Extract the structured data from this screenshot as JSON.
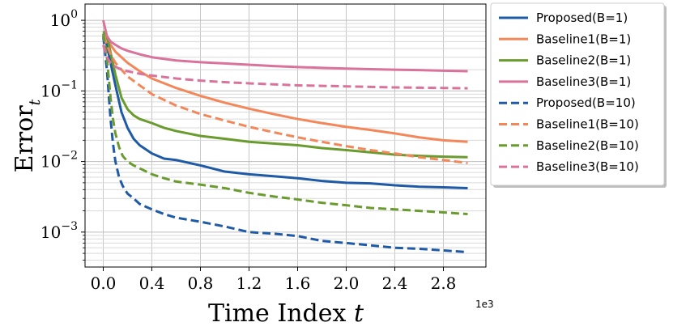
{
  "chart_data": {
    "type": "line",
    "xlabel_main": "Time Index ",
    "xlabel_var": "t",
    "ylabel_main": "Error",
    "ylabel_sub": "t",
    "x_offset_label": "1e3",
    "x_ticks": [
      "0.0",
      "0.4",
      "0.8",
      "1.2",
      "1.6",
      "2.0",
      "2.4",
      "2.8"
    ],
    "x_tick_values": [
      0,
      400,
      800,
      1200,
      1600,
      2000,
      2400,
      2800
    ],
    "y_ticks": [
      {
        "base": "10",
        "exp": "0",
        "value": 1
      },
      {
        "base": "10",
        "exp": "−1",
        "value": 0.1
      },
      {
        "base": "10",
        "exp": "−2",
        "value": 0.01
      },
      {
        "base": "10",
        "exp": "−3",
        "value": 0.001
      }
    ],
    "yscale": "log",
    "xlim": [
      -150,
      3150
    ],
    "ylim": [
      0.00032,
      1.7
    ],
    "grid": true,
    "legend_position": "outside-right",
    "series": [
      {
        "name": "Proposed(B=1)",
        "color": "#1f5aa6",
        "dash": "solid",
        "x": [
          0,
          30,
          60,
          100,
          150,
          200,
          250,
          300,
          400,
          500,
          600,
          800,
          1000,
          1200,
          1400,
          1600,
          1800,
          2000,
          2200,
          2400,
          2600,
          2800,
          3000
        ],
        "y": [
          0.55,
          0.45,
          0.25,
          0.12,
          0.05,
          0.03,
          0.021,
          0.017,
          0.013,
          0.011,
          0.0105,
          0.0088,
          0.0072,
          0.0066,
          0.0062,
          0.0058,
          0.0053,
          0.005,
          0.0049,
          0.0046,
          0.0044,
          0.0043,
          0.0042
        ]
      },
      {
        "name": "Baseline1(B=1)",
        "color": "#f4875a",
        "dash": "solid",
        "x": [
          0,
          30,
          60,
          100,
          150,
          200,
          300,
          400,
          600,
          800,
          1000,
          1200,
          1400,
          1600,
          1800,
          2000,
          2200,
          2400,
          2600,
          2800,
          3000
        ],
        "y": [
          0.6,
          0.55,
          0.45,
          0.36,
          0.3,
          0.25,
          0.19,
          0.15,
          0.11,
          0.085,
          0.068,
          0.056,
          0.047,
          0.04,
          0.035,
          0.031,
          0.028,
          0.025,
          0.022,
          0.02,
          0.019
        ]
      },
      {
        "name": "Baseline2(B=1)",
        "color": "#6a9b2e",
        "dash": "solid",
        "x": [
          0,
          30,
          60,
          100,
          150,
          200,
          250,
          300,
          400,
          500,
          600,
          800,
          1000,
          1200,
          1400,
          1600,
          1800,
          2000,
          2200,
          2400,
          2600,
          2800,
          3000
        ],
        "y": [
          0.7,
          0.6,
          0.35,
          0.17,
          0.08,
          0.055,
          0.045,
          0.04,
          0.035,
          0.03,
          0.027,
          0.023,
          0.021,
          0.019,
          0.018,
          0.017,
          0.0155,
          0.0145,
          0.0135,
          0.0125,
          0.012,
          0.0117,
          0.0115
        ]
      },
      {
        "name": "Baseline3(B=1)",
        "color": "#d9739b",
        "dash": "solid",
        "x": [
          0,
          30,
          60,
          100,
          150,
          200,
          300,
          400,
          600,
          800,
          1000,
          1200,
          1400,
          1600,
          1800,
          2000,
          2200,
          2400,
          2600,
          2800,
          3000
        ],
        "y": [
          1.0,
          0.6,
          0.5,
          0.45,
          0.4,
          0.37,
          0.33,
          0.3,
          0.27,
          0.255,
          0.245,
          0.235,
          0.225,
          0.218,
          0.212,
          0.207,
          0.203,
          0.2,
          0.197,
          0.193,
          0.19
        ]
      },
      {
        "name": "Proposed(B=10)",
        "color": "#1f5aa6",
        "dash": "dashed",
        "x": [
          0,
          30,
          60,
          80,
          100,
          130,
          160,
          200,
          250,
          300,
          400,
          500,
          600,
          800,
          1000,
          1200,
          1400,
          1600,
          1800,
          2000,
          2200,
          2400,
          2600,
          2800,
          3000
        ],
        "y": [
          0.6,
          0.2,
          0.04,
          0.018,
          0.01,
          0.006,
          0.0045,
          0.0035,
          0.003,
          0.0025,
          0.0021,
          0.0018,
          0.0016,
          0.0014,
          0.0012,
          0.001,
          0.00095,
          0.00088,
          0.00075,
          0.0007,
          0.00065,
          0.0006,
          0.00058,
          0.00055,
          0.00052
        ]
      },
      {
        "name": "Baseline1(B=10)",
        "color": "#f4875a",
        "dash": "dashed",
        "x": [
          0,
          30,
          60,
          100,
          150,
          200,
          300,
          400,
          600,
          800,
          1000,
          1200,
          1400,
          1600,
          1800,
          2000,
          2200,
          2400,
          2600,
          2800,
          3000
        ],
        "y": [
          0.6,
          0.45,
          0.33,
          0.25,
          0.2,
          0.16,
          0.12,
          0.09,
          0.062,
          0.047,
          0.038,
          0.031,
          0.026,
          0.022,
          0.019,
          0.0165,
          0.0145,
          0.013,
          0.0115,
          0.0105,
          0.0095
        ]
      },
      {
        "name": "Baseline2(B=10)",
        "color": "#6a9b2e",
        "dash": "dashed",
        "x": [
          0,
          30,
          60,
          80,
          100,
          130,
          160,
          200,
          250,
          300,
          400,
          500,
          600,
          800,
          1000,
          1200,
          1400,
          1600,
          1800,
          2000,
          2200,
          2400,
          2600,
          2800,
          3000
        ],
        "y": [
          0.65,
          0.3,
          0.08,
          0.04,
          0.025,
          0.016,
          0.012,
          0.01,
          0.0088,
          0.008,
          0.0066,
          0.0058,
          0.0052,
          0.0047,
          0.0042,
          0.0036,
          0.0032,
          0.0029,
          0.0026,
          0.0024,
          0.0022,
          0.0021,
          0.002,
          0.0019,
          0.0018
        ]
      },
      {
        "name": "Baseline3(B=10)",
        "color": "#d9739b",
        "dash": "dashed",
        "x": [
          0,
          30,
          60,
          100,
          150,
          200,
          300,
          400,
          600,
          800,
          1000,
          1200,
          1400,
          1600,
          1800,
          2000,
          2200,
          2400,
          2600,
          2800,
          3000
        ],
        "y": [
          0.45,
          0.3,
          0.25,
          0.22,
          0.2,
          0.19,
          0.175,
          0.165,
          0.15,
          0.14,
          0.133,
          0.128,
          0.124,
          0.12,
          0.118,
          0.116,
          0.114,
          0.112,
          0.111,
          0.11,
          0.109
        ]
      }
    ]
  }
}
